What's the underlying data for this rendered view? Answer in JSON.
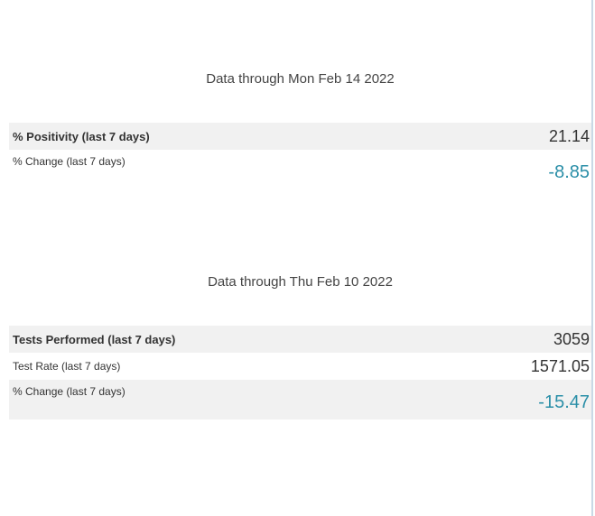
{
  "sections": [
    {
      "title": "Data through Mon Feb 14 2022",
      "rows": [
        {
          "label": "% Positivity (last 7 days)",
          "value": "21.14"
        },
        {
          "label": "% Change (last 7 days)",
          "value": "-8.85"
        }
      ]
    },
    {
      "title": "Data through Thu Feb 10 2022",
      "rows": [
        {
          "label": "Tests Performed (last 7 days)",
          "value": "3059"
        },
        {
          "label": "Test Rate (last 7 days)",
          "value": "1571.05"
        },
        {
          "label": "% Change (last 7 days)",
          "value": "-15.47"
        }
      ]
    }
  ]
}
